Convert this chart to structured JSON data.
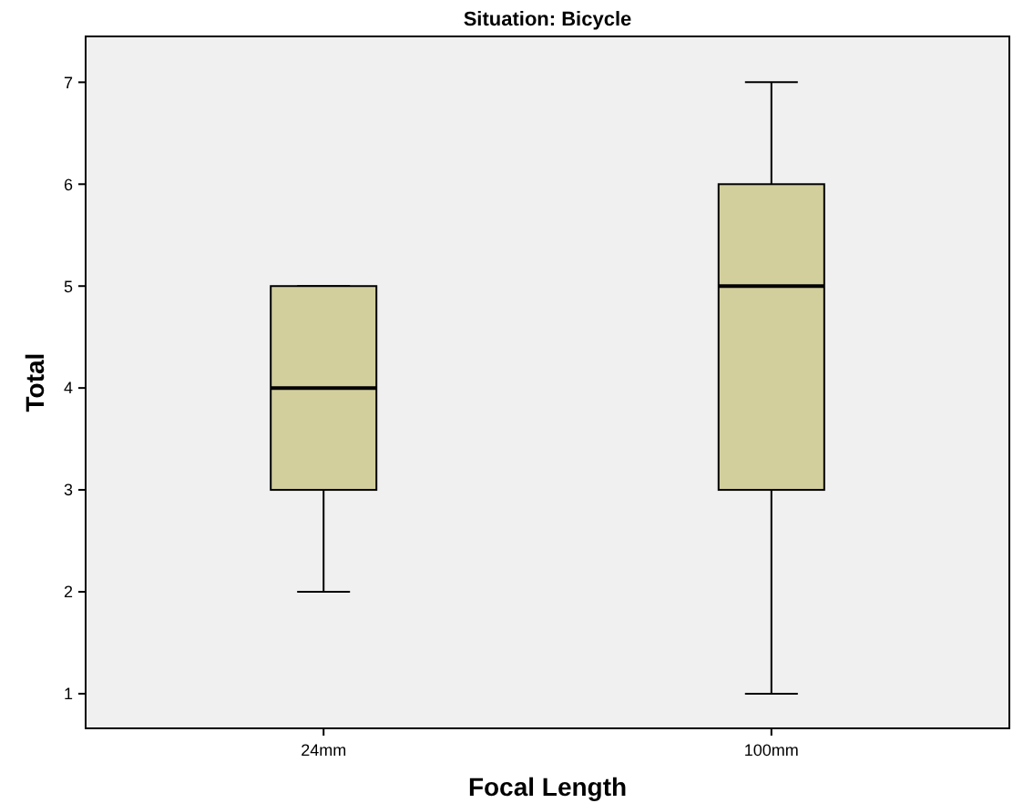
{
  "chart_data": {
    "type": "box",
    "title": "Situation: Bicycle",
    "xlabel": "Focal Length",
    "ylabel": "Total",
    "categories": [
      "24mm",
      "100mm"
    ],
    "boxes": [
      {
        "low": 2,
        "q1": 3,
        "median": 4,
        "q3": 5,
        "high": 5
      },
      {
        "low": 1,
        "q1": 3,
        "median": 5,
        "q3": 6,
        "high": 7
      }
    ],
    "color": "#d3cf9d",
    "ylim": [
      0.66,
      7.45
    ],
    "yticks": [
      1,
      2,
      3,
      4,
      5,
      6,
      7
    ],
    "grid": false
  }
}
